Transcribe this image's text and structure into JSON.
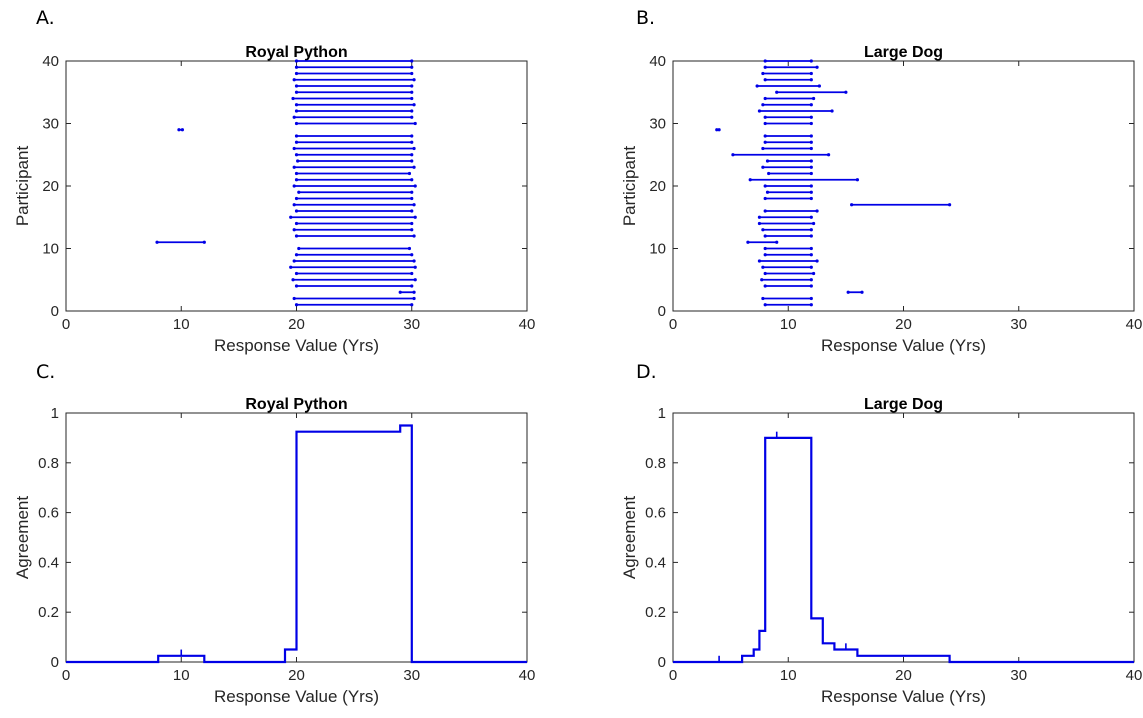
{
  "colors": {
    "series": "#0000e6",
    "axes": "#262626",
    "background": "#ffffff"
  },
  "chart_data": [
    {
      "panel_label": "A.",
      "type": "interval",
      "title": "Royal Python",
      "xlabel": "Response Value (Yrs)",
      "ylabel": "Participant",
      "xlim": [
        0,
        40
      ],
      "ylim": [
        0,
        40
      ],
      "xticks": [
        0,
        10,
        20,
        30,
        40
      ],
      "yticks": [
        0,
        10,
        20,
        30,
        40
      ],
      "grid": false,
      "intervals": [
        {
          "p": 1,
          "lo": 20,
          "hi": 30
        },
        {
          "p": 2,
          "lo": 19.8,
          "hi": 30.2
        },
        {
          "p": 3,
          "lo": 29,
          "hi": 30.2
        },
        {
          "p": 4,
          "lo": 20,
          "hi": 30
        },
        {
          "p": 5,
          "lo": 19.7,
          "hi": 30.3
        },
        {
          "p": 6,
          "lo": 20,
          "hi": 30
        },
        {
          "p": 7,
          "lo": 19.5,
          "hi": 30.3
        },
        {
          "p": 8,
          "lo": 19.8,
          "hi": 30.2
        },
        {
          "p": 9,
          "lo": 20,
          "hi": 30
        },
        {
          "p": 10,
          "lo": 20.2,
          "hi": 29.8
        },
        {
          "p": 11,
          "lo": 7.9,
          "hi": 12
        },
        {
          "p": 12,
          "lo": 20,
          "hi": 30.2
        },
        {
          "p": 13,
          "lo": 19.8,
          "hi": 30
        },
        {
          "p": 14,
          "lo": 20,
          "hi": 30
        },
        {
          "p": 15,
          "lo": 19.5,
          "hi": 30.3
        },
        {
          "p": 16,
          "lo": 20,
          "hi": 30
        },
        {
          "p": 17,
          "lo": 19.8,
          "hi": 30.2
        },
        {
          "p": 18,
          "lo": 20,
          "hi": 30
        },
        {
          "p": 19,
          "lo": 20.2,
          "hi": 30
        },
        {
          "p": 20,
          "lo": 19.8,
          "hi": 30.3
        },
        {
          "p": 21,
          "lo": 20,
          "hi": 30
        },
        {
          "p": 22,
          "lo": 20,
          "hi": 29.8
        },
        {
          "p": 23,
          "lo": 19.8,
          "hi": 30.2
        },
        {
          "p": 24,
          "lo": 20.1,
          "hi": 30
        },
        {
          "p": 25,
          "lo": 20,
          "hi": 30
        },
        {
          "p": 26,
          "lo": 19.8,
          "hi": 30.2
        },
        {
          "p": 27,
          "lo": 20,
          "hi": 30
        },
        {
          "p": 28,
          "lo": 20,
          "hi": 30
        },
        {
          "p": 29,
          "lo": 9.8,
          "hi": 10.1
        },
        {
          "p": 30,
          "lo": 20,
          "hi": 30.3
        },
        {
          "p": 31,
          "lo": 19.8,
          "hi": 30
        },
        {
          "p": 32,
          "lo": 20,
          "hi": 30
        },
        {
          "p": 33,
          "lo": 20,
          "hi": 30.2
        },
        {
          "p": 34,
          "lo": 19.7,
          "hi": 30
        },
        {
          "p": 35,
          "lo": 20,
          "hi": 30
        },
        {
          "p": 36,
          "lo": 20,
          "hi": 30
        },
        {
          "p": 37,
          "lo": 19.8,
          "hi": 30.2
        },
        {
          "p": 38,
          "lo": 20,
          "hi": 30
        },
        {
          "p": 39,
          "lo": 20,
          "hi": 30
        },
        {
          "p": 40,
          "lo": 20,
          "hi": 30
        }
      ]
    },
    {
      "panel_label": "B.",
      "type": "interval",
      "title": "Large Dog",
      "xlabel": "Response Value (Yrs)",
      "ylabel": "Participant",
      "xlim": [
        0,
        40
      ],
      "ylim": [
        0,
        40
      ],
      "xticks": [
        0,
        10,
        20,
        30,
        40
      ],
      "yticks": [
        0,
        10,
        20,
        30,
        40
      ],
      "grid": false,
      "intervals": [
        {
          "p": 1,
          "lo": 8,
          "hi": 12
        },
        {
          "p": 2,
          "lo": 7.8,
          "hi": 12
        },
        {
          "p": 3,
          "lo": 15.2,
          "hi": 16.4
        },
        {
          "p": 4,
          "lo": 8,
          "hi": 12
        },
        {
          "p": 5,
          "lo": 7.7,
          "hi": 12
        },
        {
          "p": 6,
          "lo": 8,
          "hi": 12.2
        },
        {
          "p": 7,
          "lo": 7.8,
          "hi": 12
        },
        {
          "p": 8,
          "lo": 7.5,
          "hi": 12.5
        },
        {
          "p": 9,
          "lo": 8,
          "hi": 12
        },
        {
          "p": 10,
          "lo": 8,
          "hi": 12
        },
        {
          "p": 11,
          "lo": 6.5,
          "hi": 9
        },
        {
          "p": 12,
          "lo": 8,
          "hi": 12
        },
        {
          "p": 13,
          "lo": 7.8,
          "hi": 12
        },
        {
          "p": 14,
          "lo": 7.5,
          "hi": 12.2
        },
        {
          "p": 15,
          "lo": 7.5,
          "hi": 12
        },
        {
          "p": 16,
          "lo": 8,
          "hi": 12.5
        },
        {
          "p": 17,
          "lo": 15.5,
          "hi": 24
        },
        {
          "p": 18,
          "lo": 8,
          "hi": 12
        },
        {
          "p": 19,
          "lo": 8.2,
          "hi": 12
        },
        {
          "p": 20,
          "lo": 8,
          "hi": 12
        },
        {
          "p": 21,
          "lo": 6.7,
          "hi": 16
        },
        {
          "p": 22,
          "lo": 8.3,
          "hi": 12
        },
        {
          "p": 23,
          "lo": 7.8,
          "hi": 12
        },
        {
          "p": 24,
          "lo": 8.2,
          "hi": 12
        },
        {
          "p": 25,
          "lo": 5.2,
          "hi": 13.5
        },
        {
          "p": 26,
          "lo": 7.8,
          "hi": 12
        },
        {
          "p": 27,
          "lo": 8,
          "hi": 12
        },
        {
          "p": 28,
          "lo": 8,
          "hi": 12
        },
        {
          "p": 29,
          "lo": 3.8,
          "hi": 4.0
        },
        {
          "p": 30,
          "lo": 8,
          "hi": 12
        },
        {
          "p": 31,
          "lo": 8,
          "hi": 12
        },
        {
          "p": 32,
          "lo": 7.5,
          "hi": 13.8
        },
        {
          "p": 33,
          "lo": 7.8,
          "hi": 12
        },
        {
          "p": 34,
          "lo": 8,
          "hi": 12.2
        },
        {
          "p": 35,
          "lo": 9,
          "hi": 15
        },
        {
          "p": 36,
          "lo": 7.3,
          "hi": 12.7
        },
        {
          "p": 37,
          "lo": 8,
          "hi": 12
        },
        {
          "p": 38,
          "lo": 7.8,
          "hi": 12
        },
        {
          "p": 39,
          "lo": 8,
          "hi": 12.5
        },
        {
          "p": 40,
          "lo": 8,
          "hi": 12
        }
      ]
    },
    {
      "panel_label": "C.",
      "type": "line",
      "title": "Royal Python",
      "xlabel": "Response Value (Yrs)",
      "ylabel": "Agreement",
      "xlim": [
        0,
        40
      ],
      "ylim": [
        0,
        1
      ],
      "xticks": [
        0,
        10,
        20,
        30,
        40
      ],
      "yticks": [
        0,
        0.2,
        0.4,
        0.6,
        0.8,
        1
      ],
      "grid": false,
      "series": [
        {
          "style": "step",
          "x": [
            0,
            8,
            8,
            12,
            12,
            19,
            19,
            20,
            20,
            29,
            29,
            30,
            30,
            40
          ],
          "y": [
            0,
            0,
            0.025,
            0.025,
            0,
            0,
            0.05,
            0.05,
            0.925,
            0.925,
            0.95,
            0.95,
            0,
            0
          ]
        }
      ],
      "spikes": [
        {
          "x": 10,
          "y0": 0.025,
          "y1": 0.05
        }
      ]
    },
    {
      "panel_label": "D.",
      "type": "line",
      "title": "Large Dog",
      "xlabel": "Response Value (Yrs)",
      "ylabel": "Agreement",
      "xlim": [
        0,
        40
      ],
      "ylim": [
        0,
        1
      ],
      "xticks": [
        0,
        10,
        20,
        30,
        40
      ],
      "yticks": [
        0,
        0.2,
        0.4,
        0.6,
        0.8,
        1
      ],
      "grid": false,
      "series": [
        {
          "style": "step",
          "x": [
            0,
            6,
            6,
            7,
            7,
            7.5,
            7.5,
            8,
            8,
            12,
            12,
            13,
            13,
            14,
            14,
            16,
            16,
            24,
            24,
            40
          ],
          "y": [
            0,
            0,
            0.025,
            0.025,
            0.05,
            0.05,
            0.125,
            0.125,
            0.9,
            0.9,
            0.175,
            0.175,
            0.075,
            0.075,
            0.05,
            0.05,
            0.025,
            0.025,
            0,
            0
          ]
        }
      ],
      "spikes": [
        {
          "x": 4,
          "y0": 0,
          "y1": 0.025
        },
        {
          "x": 9,
          "y0": 0.9,
          "y1": 0.925
        },
        {
          "x": 15,
          "y0": 0.05,
          "y1": 0.075
        }
      ]
    }
  ]
}
